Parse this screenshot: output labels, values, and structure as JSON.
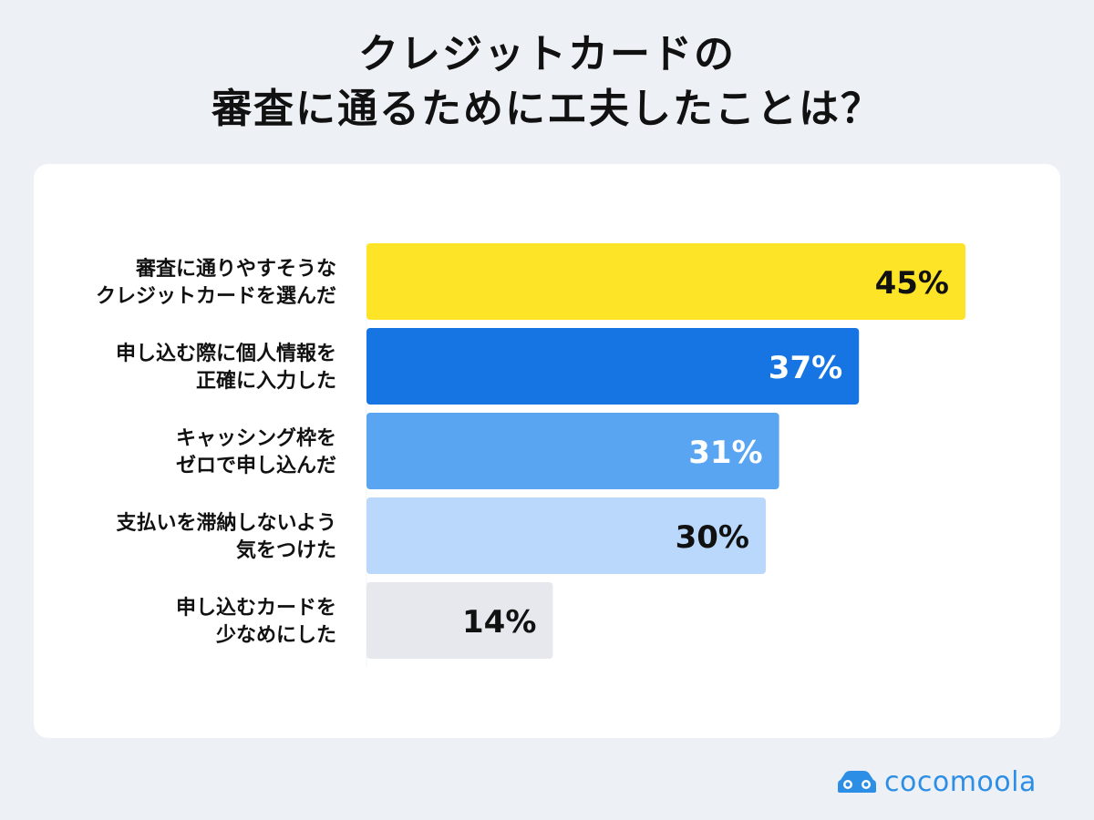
{
  "title_lines": [
    "クレジットカードの",
    "審査に通るためにエ夫したことは？"
  ],
  "brand": {
    "name": "cocomoola",
    "icon": "car-icon",
    "color": "#2d8ee6"
  },
  "chart_data": {
    "type": "bar",
    "orientation": "horizontal",
    "categories": [
      [
        "審査に通りやすそうな",
        "クレジットカードを選んだ"
      ],
      [
        "申し込む際に個人情報を",
        "正確に入力した"
      ],
      [
        "キャッシング枠を",
        "ゼロで申し込んだ"
      ],
      [
        "支払いを滞納しないよう",
        "気をつけた"
      ],
      [
        "申し込むカードを",
        "少なめにした"
      ]
    ],
    "values": [
      45,
      37,
      31,
      30,
      14
    ],
    "data_labels": [
      "45%",
      "37%",
      "31%",
      "30%",
      "14%"
    ],
    "bar_colors": [
      "#fde427",
      "#1674e3",
      "#5aa5f1",
      "#b9d8fb",
      "#e6e8ee"
    ],
    "label_colors": [
      "#111111",
      "#ffffff",
      "#ffffff",
      "#111111",
      "#111111"
    ],
    "xlim": [
      0,
      45
    ],
    "grid": false,
    "legend": "none"
  }
}
